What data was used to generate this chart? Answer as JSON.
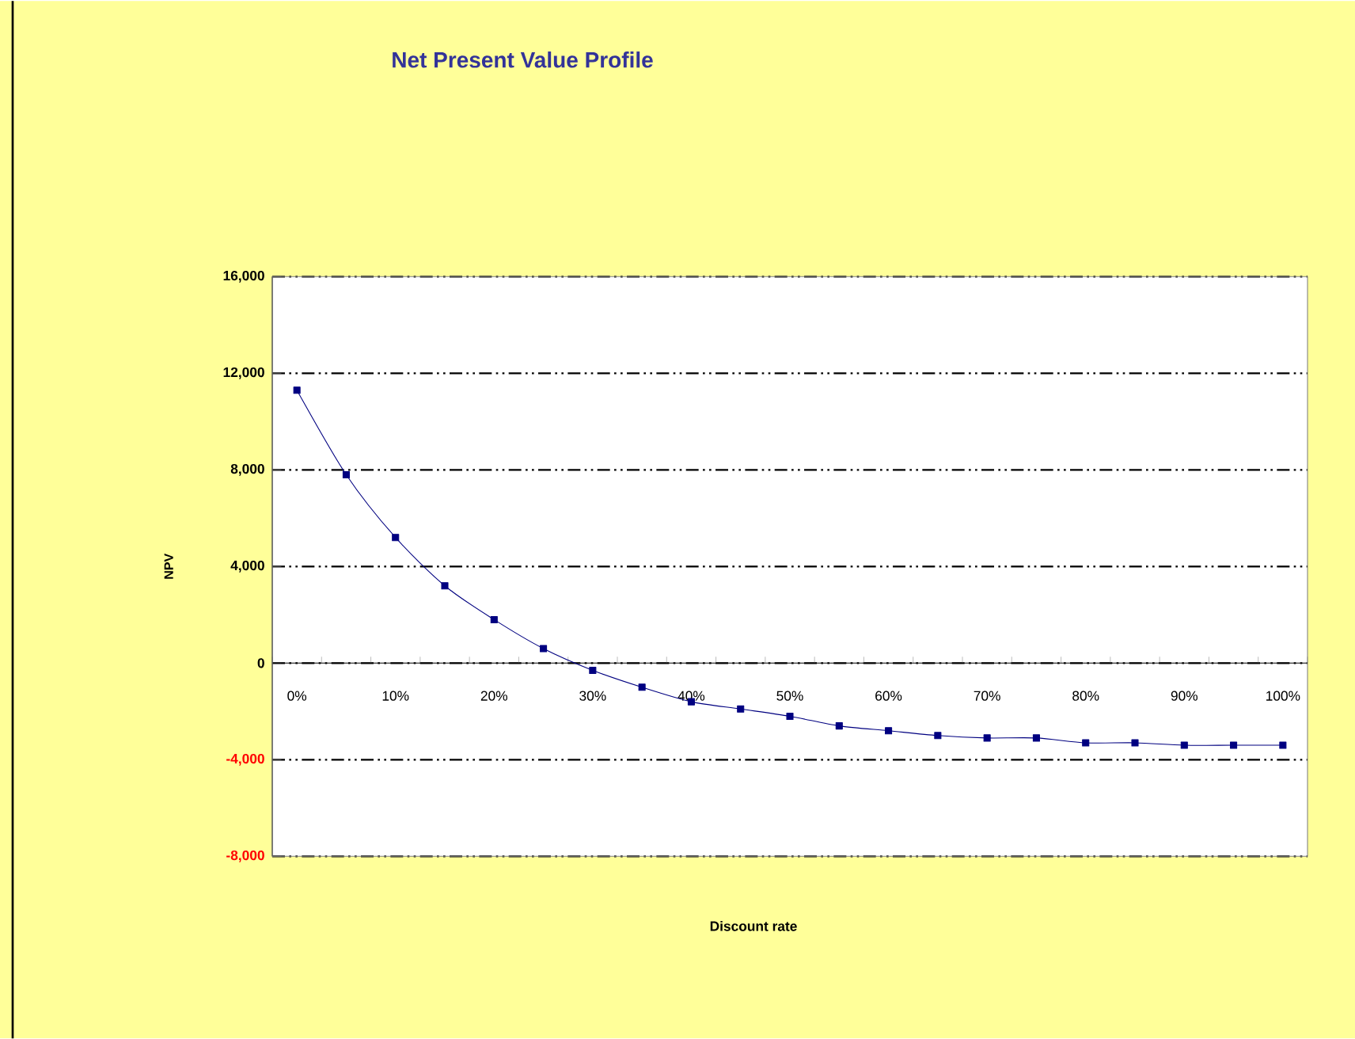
{
  "chart_data": {
    "type": "line",
    "title": "Net Present Value Profile",
    "xlabel": "Discount rate",
    "ylabel": "NPV",
    "categories": [
      "0%",
      null,
      "10%",
      null,
      "20%",
      null,
      "30%",
      null,
      "40%",
      null,
      "50%",
      null,
      "60%",
      null,
      "70%",
      null,
      "80%",
      null,
      "90%",
      null,
      "100%"
    ],
    "series": [
      {
        "color": "#000080",
        "values": [
          11300,
          7800,
          5200,
          3200,
          1800,
          600,
          -300,
          -1000,
          -1600,
          -1900,
          -2200,
          -2600,
          -2800,
          -3000,
          -3100,
          -3100,
          -3300,
          -3300,
          -3400,
          -3400,
          -3400
        ]
      }
    ],
    "ylim": [
      -8000,
      16000
    ],
    "yticks": [
      {
        "value": -8000,
        "label": "-8,000"
      },
      {
        "value": -4000,
        "label": "-4,000"
      },
      {
        "value": 0,
        "label": "0"
      },
      {
        "value": 4000,
        "label": "4,000"
      },
      {
        "value": 8000,
        "label": "8,000"
      },
      {
        "value": 12000,
        "label": "12,000"
      },
      {
        "value": 16000,
        "label": "16,000"
      }
    ],
    "grid": "y",
    "marker": "square",
    "line_style": "solid"
  }
}
